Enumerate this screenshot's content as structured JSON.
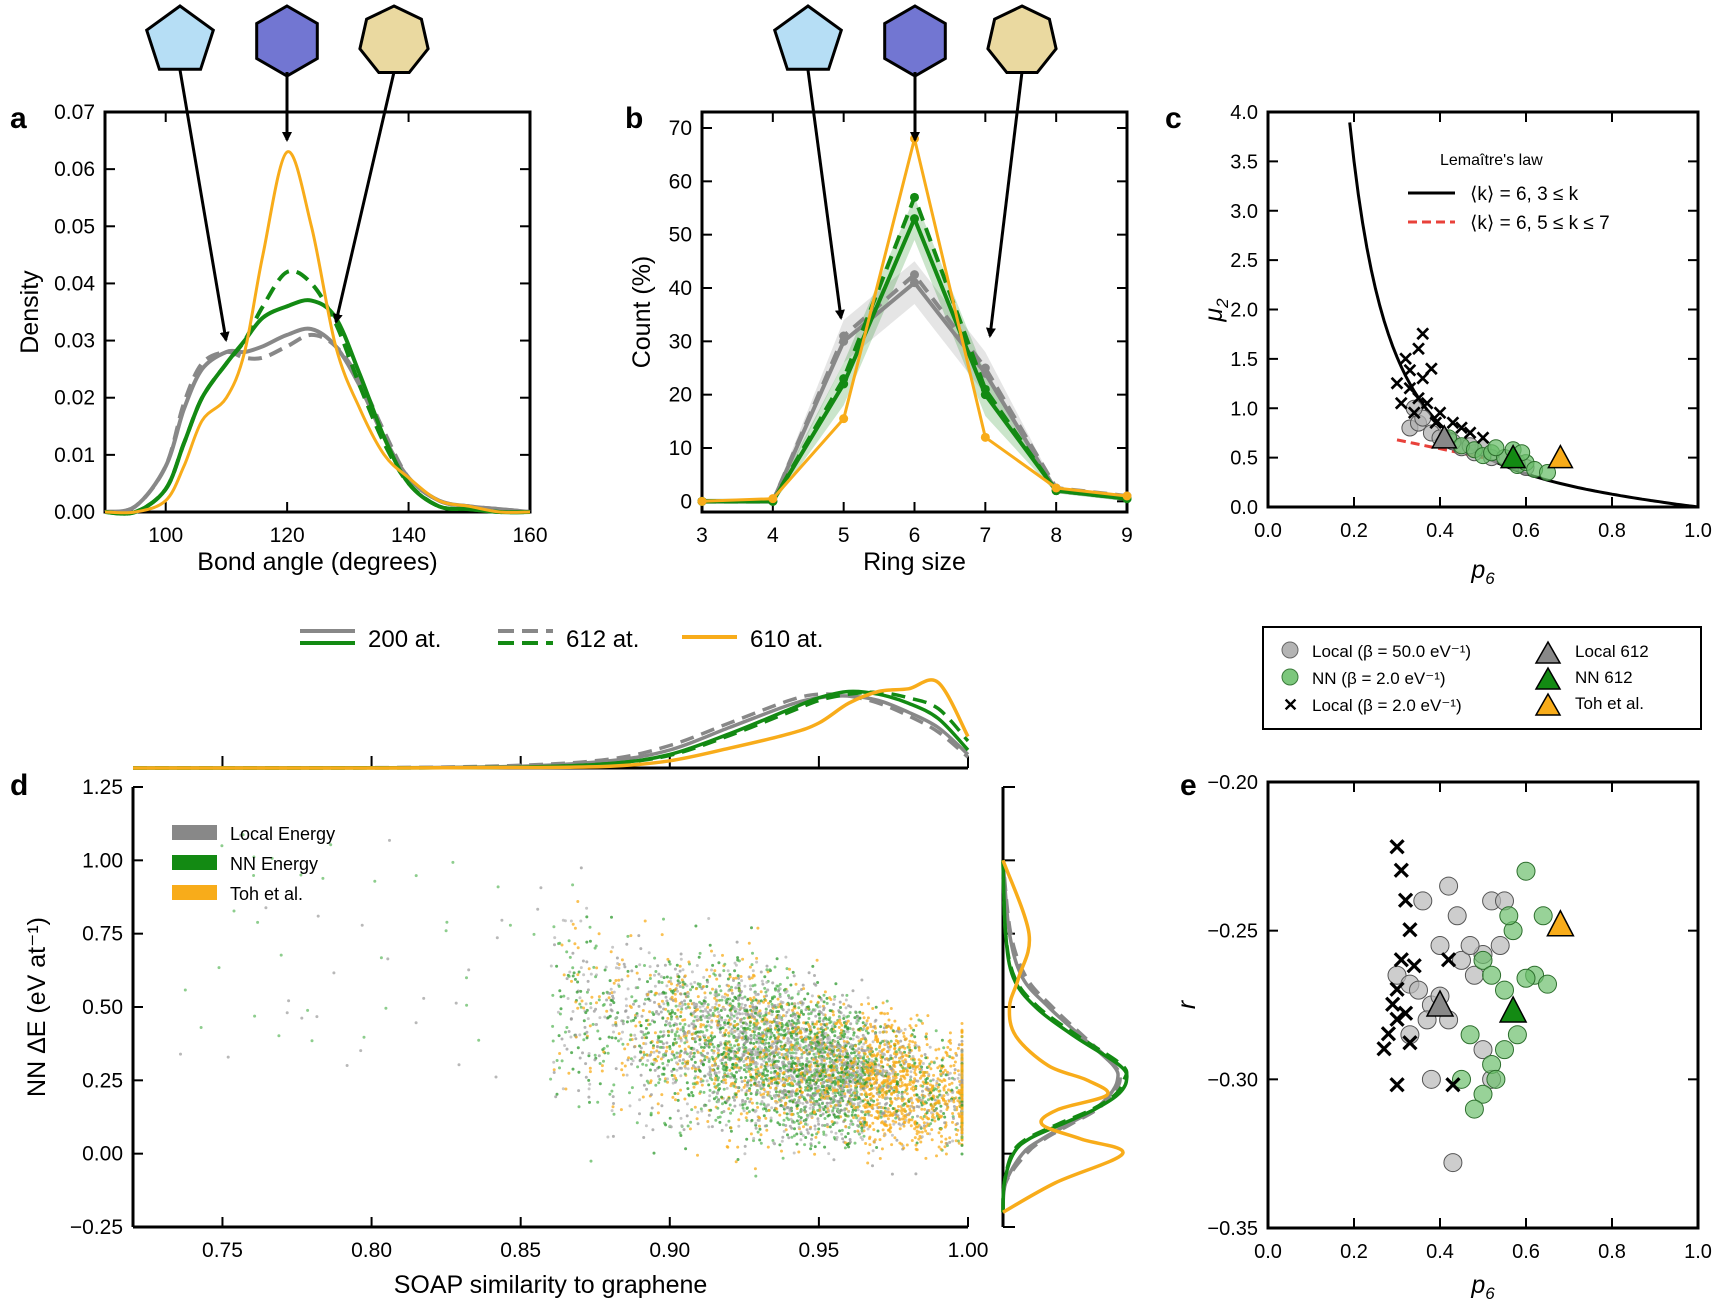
{
  "colors": {
    "grey": "#888888",
    "green": "#138a13",
    "orange": "#f8ac1a",
    "pentagon": "#b6def5",
    "hexagon": "#7276d2",
    "heptagon": "#ead9a0",
    "red": "#e8413a"
  },
  "panel_labels": [
    "a",
    "b",
    "c",
    "d",
    "e"
  ],
  "shared_legend": {
    "entries": [
      {
        "label": "200 at.",
        "style": "solid"
      },
      {
        "label": "612 at.",
        "style": "dashed"
      },
      {
        "label": "610 at.",
        "style": "orange"
      }
    ]
  },
  "marker_legend": {
    "entries": [
      {
        "label": "Local (β = 50.0 eV⁻¹)",
        "marker": "circle",
        "color": "grey"
      },
      {
        "label": "NN (β = 2.0 eV⁻¹)",
        "marker": "circle",
        "color": "green"
      },
      {
        "label": "Local (β = 2.0 eV⁻¹)",
        "marker": "x",
        "color": "darkgrey"
      },
      {
        "label": "Local 612",
        "marker": "triangle",
        "color": "grey"
      },
      {
        "label": "NN 612",
        "marker": "triangle",
        "color": "green"
      },
      {
        "label": "Toh et al.",
        "marker": "triangle",
        "color": "orange"
      }
    ]
  },
  "chart_data": [
    {
      "panel": "a",
      "type": "line",
      "xlabel": "Bond angle (degrees)",
      "ylabel": "Density",
      "xlim": [
        90,
        160
      ],
      "ylim": [
        0,
        0.07
      ],
      "xticks": [
        100,
        120,
        140,
        160
      ],
      "yticks": [
        0.0,
        0.01,
        0.02,
        0.03,
        0.04,
        0.05,
        0.06,
        0.07
      ],
      "x": [
        90,
        95,
        100,
        103,
        106,
        110,
        113,
        116,
        120,
        124,
        128,
        132,
        136,
        140,
        145,
        150,
        155,
        160
      ],
      "series": [
        {
          "name": "200 at. grey",
          "color": "grey",
          "dash": "solid",
          "values": [
            0.0,
            0.001,
            0.008,
            0.018,
            0.025,
            0.028,
            0.028,
            0.029,
            0.031,
            0.032,
            0.029,
            0.022,
            0.013,
            0.006,
            0.002,
            0.001,
            0.0005,
            0.0
          ]
        },
        {
          "name": "612 at. grey",
          "color": "grey",
          "dash": "dashed",
          "values": [
            0.0,
            0.001,
            0.008,
            0.019,
            0.026,
            0.028,
            0.027,
            0.027,
            0.029,
            0.031,
            0.029,
            0.023,
            0.014,
            0.006,
            0.002,
            0.001,
            0.0005,
            0.0
          ]
        },
        {
          "name": "200 at. green",
          "color": "green",
          "dash": "solid",
          "values": [
            0.0,
            0.0,
            0.004,
            0.012,
            0.02,
            0.026,
            0.03,
            0.034,
            0.036,
            0.037,
            0.034,
            0.024,
            0.013,
            0.005,
            0.001,
            0.0005,
            0.0,
            0.0
          ]
        },
        {
          "name": "612 at. green",
          "color": "green",
          "dash": "dashed",
          "values": [
            0.0,
            0.0,
            0.004,
            0.012,
            0.02,
            0.026,
            0.03,
            0.036,
            0.042,
            0.04,
            0.033,
            0.022,
            0.012,
            0.005,
            0.001,
            0.0005,
            0.0,
            0.0
          ]
        },
        {
          "name": "610 at.",
          "color": "orange",
          "dash": "solid",
          "values": [
            0.0,
            0.0,
            0.002,
            0.008,
            0.016,
            0.02,
            0.028,
            0.045,
            0.063,
            0.05,
            0.029,
            0.018,
            0.01,
            0.006,
            0.002,
            0.001,
            0.0,
            0.0
          ]
        }
      ]
    },
    {
      "panel": "b",
      "type": "line",
      "xlabel": "Ring size",
      "ylabel": "Count (%)",
      "xlim": [
        3,
        9
      ],
      "ylim": [
        -2,
        73
      ],
      "xticks": [
        3,
        4,
        5,
        6,
        7,
        8,
        9
      ],
      "yticks": [
        0,
        10,
        20,
        30,
        40,
        50,
        60,
        70
      ],
      "x": [
        3,
        4,
        5,
        6,
        7,
        8,
        9
      ],
      "series": [
        {
          "name": "200 at. grey",
          "color": "grey",
          "dash": "solid",
          "values": [
            0,
            0,
            30,
            41,
            24,
            2,
            0.5
          ]
        },
        {
          "name": "612 at. grey",
          "color": "grey",
          "dash": "dashed",
          "values": [
            0,
            0,
            31,
            42.5,
            25,
            2.5,
            1
          ]
        },
        {
          "name": "200 at. green",
          "color": "green",
          "dash": "solid",
          "values": [
            0,
            0,
            22,
            53,
            20,
            2,
            0.5
          ]
        },
        {
          "name": "612 at. green",
          "color": "green",
          "dash": "dashed",
          "values": [
            0,
            0,
            23,
            57,
            21,
            2,
            0.5
          ]
        },
        {
          "name": "610 at.",
          "color": "orange",
          "dash": "solid",
          "values": [
            0,
            0.5,
            15.5,
            68,
            12,
            2.5,
            1
          ]
        }
      ]
    },
    {
      "panel": "c",
      "type": "scatter",
      "xlabel": "p6",
      "ylabel": "μ2",
      "xlim": [
        0.0,
        1.0
      ],
      "ylim": [
        0.0,
        4.0
      ],
      "xticks": [
        0.0,
        0.2,
        0.4,
        0.6,
        0.8,
        1.0
      ],
      "yticks": [
        0.0,
        0.5,
        1.0,
        1.5,
        2.0,
        2.5,
        3.0,
        3.5,
        4.0
      ],
      "legend_title": "Lemaître's law",
      "legend_entries": [
        "⟨k⟩ = 6, 3 ≤ k",
        "⟨k⟩ = 6, 5 ≤ k ≤ 7"
      ],
      "grey_circles": [
        [
          0.33,
          0.8
        ],
        [
          0.35,
          0.85
        ],
        [
          0.38,
          0.75
        ],
        [
          0.4,
          0.7
        ],
        [
          0.42,
          0.68
        ],
        [
          0.36,
          0.9
        ],
        [
          0.45,
          0.6
        ],
        [
          0.48,
          0.55
        ],
        [
          0.5,
          0.6
        ],
        [
          0.52,
          0.5
        ],
        [
          0.55,
          0.5
        ],
        [
          0.58,
          0.45
        ],
        [
          0.6,
          0.4
        ],
        [
          0.47,
          0.62
        ],
        [
          0.43,
          0.66
        ],
        [
          0.34,
          1.0
        ]
      ],
      "green_circles": [
        [
          0.42,
          0.7
        ],
        [
          0.45,
          0.62
        ],
        [
          0.48,
          0.58
        ],
        [
          0.5,
          0.52
        ],
        [
          0.52,
          0.55
        ],
        [
          0.55,
          0.5
        ],
        [
          0.58,
          0.42
        ],
        [
          0.6,
          0.45
        ],
        [
          0.62,
          0.38
        ],
        [
          0.65,
          0.35
        ],
        [
          0.53,
          0.6
        ],
        [
          0.57,
          0.58
        ],
        [
          0.59,
          0.55
        ]
      ],
      "x_markers": [
        [
          0.32,
          1.5
        ],
        [
          0.35,
          1.6
        ],
        [
          0.36,
          1.75
        ],
        [
          0.3,
          1.25
        ],
        [
          0.33,
          1.2
        ],
        [
          0.35,
          1.1
        ],
        [
          0.31,
          1.05
        ],
        [
          0.34,
          0.95
        ],
        [
          0.36,
          1.3
        ],
        [
          0.37,
          1.05
        ],
        [
          0.4,
          0.95
        ],
        [
          0.39,
          0.85
        ],
        [
          0.43,
          0.85
        ],
        [
          0.45,
          0.8
        ],
        [
          0.47,
          0.75
        ],
        [
          0.5,
          0.7
        ],
        [
          0.33,
          1.38
        ],
        [
          0.38,
          1.4
        ]
      ],
      "triangles": [
        {
          "name": "Local 612",
          "color": "grey",
          "point": [
            0.41,
            0.7
          ]
        },
        {
          "name": "NN 612",
          "color": "green",
          "point": [
            0.57,
            0.5
          ]
        },
        {
          "name": "Toh et al.",
          "color": "orange",
          "point": [
            0.68,
            0.5
          ]
        }
      ]
    },
    {
      "panel": "d",
      "type": "scatter",
      "xlabel": "SOAP similarity to graphene",
      "ylabel": "NN ΔE (eV at⁻¹)",
      "xlim": [
        0.72,
        1.0
      ],
      "ylim": [
        -0.25,
        1.25
      ],
      "xticks": [
        0.75,
        0.8,
        0.85,
        0.9,
        0.95,
        1.0
      ],
      "yticks": [
        -0.25,
        0.0,
        0.25,
        0.5,
        0.75,
        1.0,
        1.25
      ],
      "legend_entries": [
        {
          "label": "Local Energy",
          "color": "grey"
        },
        {
          "label": "NN Energy",
          "color": "green"
        },
        {
          "label": "Toh et al.",
          "color": "orange"
        }
      ],
      "cloud": {
        "center_x": 0.95,
        "center_y": 0.3,
        "spread_x": 0.03,
        "spread_y": 0.15
      },
      "top_marginal_x": [
        0.72,
        0.8,
        0.85,
        0.88,
        0.9,
        0.92,
        0.94,
        0.95,
        0.96,
        0.97,
        0.98,
        0.99,
        1.0
      ],
      "top_marginal": [
        {
          "color": "grey",
          "dash": "solid",
          "values": [
            0,
            0.002,
            0.02,
            0.08,
            0.2,
            0.45,
            0.7,
            0.78,
            0.8,
            0.75,
            0.62,
            0.45,
            0.15
          ]
        },
        {
          "color": "grey",
          "dash": "dashed",
          "values": [
            0,
            0.003,
            0.03,
            0.1,
            0.25,
            0.5,
            0.75,
            0.82,
            0.8,
            0.72,
            0.58,
            0.4,
            0.12
          ]
        },
        {
          "color": "green",
          "dash": "solid",
          "values": [
            0,
            0.001,
            0.01,
            0.05,
            0.15,
            0.38,
            0.65,
            0.78,
            0.85,
            0.82,
            0.72,
            0.55,
            0.2
          ]
        },
        {
          "color": "green",
          "dash": "dashed",
          "values": [
            0,
            0.001,
            0.01,
            0.05,
            0.14,
            0.36,
            0.62,
            0.75,
            0.82,
            0.84,
            0.78,
            0.66,
            0.3
          ]
        },
        {
          "color": "orange",
          "dash": "solid",
          "values": [
            0,
            0,
            0.005,
            0.02,
            0.08,
            0.22,
            0.38,
            0.5,
            0.72,
            0.85,
            0.88,
            0.95,
            0.35
          ]
        }
      ],
      "right_marginal_y": [
        -0.2,
        -0.1,
        0.0,
        0.05,
        0.1,
        0.15,
        0.2,
        0.25,
        0.3,
        0.4,
        0.5,
        0.6,
        0.75,
        1.0
      ],
      "right_marginal": [
        {
          "color": "grey",
          "dash": "solid",
          "values": [
            0,
            0.02,
            0.15,
            0.3,
            0.5,
            0.7,
            0.82,
            0.88,
            0.85,
            0.6,
            0.35,
            0.15,
            0.05,
            0
          ]
        },
        {
          "color": "grey",
          "dash": "dashed",
          "values": [
            0,
            0.02,
            0.18,
            0.32,
            0.52,
            0.72,
            0.84,
            0.9,
            0.86,
            0.62,
            0.38,
            0.18,
            0.06,
            0
          ]
        },
        {
          "color": "green",
          "dash": "solid",
          "values": [
            0,
            0.01,
            0.08,
            0.2,
            0.45,
            0.7,
            0.88,
            0.95,
            0.9,
            0.55,
            0.25,
            0.08,
            0.02,
            0
          ]
        },
        {
          "color": "green",
          "dash": "dashed",
          "values": [
            0,
            0.01,
            0.07,
            0.18,
            0.42,
            0.68,
            0.86,
            0.93,
            0.92,
            0.58,
            0.27,
            0.09,
            0.02,
            0
          ]
        },
        {
          "color": "orange",
          "dash": "solid",
          "values": [
            0,
            0.4,
            0.92,
            0.6,
            0.3,
            0.42,
            0.8,
            0.65,
            0.35,
            0.1,
            0.05,
            0.12,
            0.2,
            0
          ]
        }
      ]
    },
    {
      "panel": "e",
      "type": "scatter",
      "xlabel": "p6",
      "ylabel": "r",
      "xlim": [
        0.0,
        1.0
      ],
      "ylim": [
        -0.35,
        -0.2
      ],
      "xticks": [
        0.0,
        0.2,
        0.4,
        0.6,
        0.8,
        1.0
      ],
      "yticks": [
        -0.35,
        -0.3,
        -0.25,
        -0.2
      ],
      "grey_circles": [
        [
          0.3,
          -0.265
        ],
        [
          0.33,
          -0.268
        ],
        [
          0.35,
          -0.27
        ],
        [
          0.38,
          -0.275
        ],
        [
          0.4,
          -0.272
        ],
        [
          0.42,
          -0.28
        ],
        [
          0.45,
          -0.26
        ],
        [
          0.48,
          -0.265
        ],
        [
          0.5,
          -0.258
        ],
        [
          0.36,
          -0.24
        ],
        [
          0.42,
          -0.235
        ],
        [
          0.44,
          -0.245
        ],
        [
          0.47,
          -0.255
        ],
        [
          0.52,
          -0.24
        ],
        [
          0.54,
          -0.255
        ],
        [
          0.33,
          -0.285
        ],
        [
          0.38,
          -0.3
        ],
        [
          0.5,
          -0.29
        ],
        [
          0.52,
          -0.3
        ],
        [
          0.43,
          -0.328
        ],
        [
          0.37,
          -0.28
        ],
        [
          0.4,
          -0.255
        ],
        [
          0.55,
          -0.24
        ]
      ],
      "green_circles": [
        [
          0.5,
          -0.26
        ],
        [
          0.52,
          -0.265
        ],
        [
          0.55,
          -0.27
        ],
        [
          0.57,
          -0.25
        ],
        [
          0.6,
          -0.23
        ],
        [
          0.62,
          -0.265
        ],
        [
          0.65,
          -0.268
        ],
        [
          0.58,
          -0.285
        ],
        [
          0.55,
          -0.29
        ],
        [
          0.52,
          -0.295
        ],
        [
          0.5,
          -0.305
        ],
        [
          0.48,
          -0.31
        ],
        [
          0.47,
          -0.285
        ],
        [
          0.53,
          -0.3
        ],
        [
          0.6,
          -0.266
        ],
        [
          0.45,
          -0.3
        ],
        [
          0.56,
          -0.245
        ],
        [
          0.64,
          -0.245
        ]
      ],
      "x_markers": [
        [
          0.3,
          -0.222
        ],
        [
          0.31,
          -0.23
        ],
        [
          0.32,
          -0.24
        ],
        [
          0.33,
          -0.25
        ],
        [
          0.31,
          -0.26
        ],
        [
          0.3,
          -0.27
        ],
        [
          0.29,
          -0.275
        ],
        [
          0.3,
          -0.28
        ],
        [
          0.28,
          -0.285
        ],
        [
          0.27,
          -0.29
        ],
        [
          0.32,
          -0.278
        ],
        [
          0.34,
          -0.262
        ],
        [
          0.3,
          -0.302
        ],
        [
          0.43,
          -0.302
        ],
        [
          0.42,
          -0.26
        ],
        [
          0.33,
          -0.288
        ]
      ],
      "triangles": [
        {
          "name": "Local 612",
          "color": "grey",
          "point": [
            0.4,
            -0.275
          ]
        },
        {
          "name": "NN 612",
          "color": "green",
          "point": [
            0.57,
            -0.277
          ]
        },
        {
          "name": "Toh et al.",
          "color": "orange",
          "point": [
            0.68,
            -0.248
          ]
        }
      ]
    }
  ]
}
